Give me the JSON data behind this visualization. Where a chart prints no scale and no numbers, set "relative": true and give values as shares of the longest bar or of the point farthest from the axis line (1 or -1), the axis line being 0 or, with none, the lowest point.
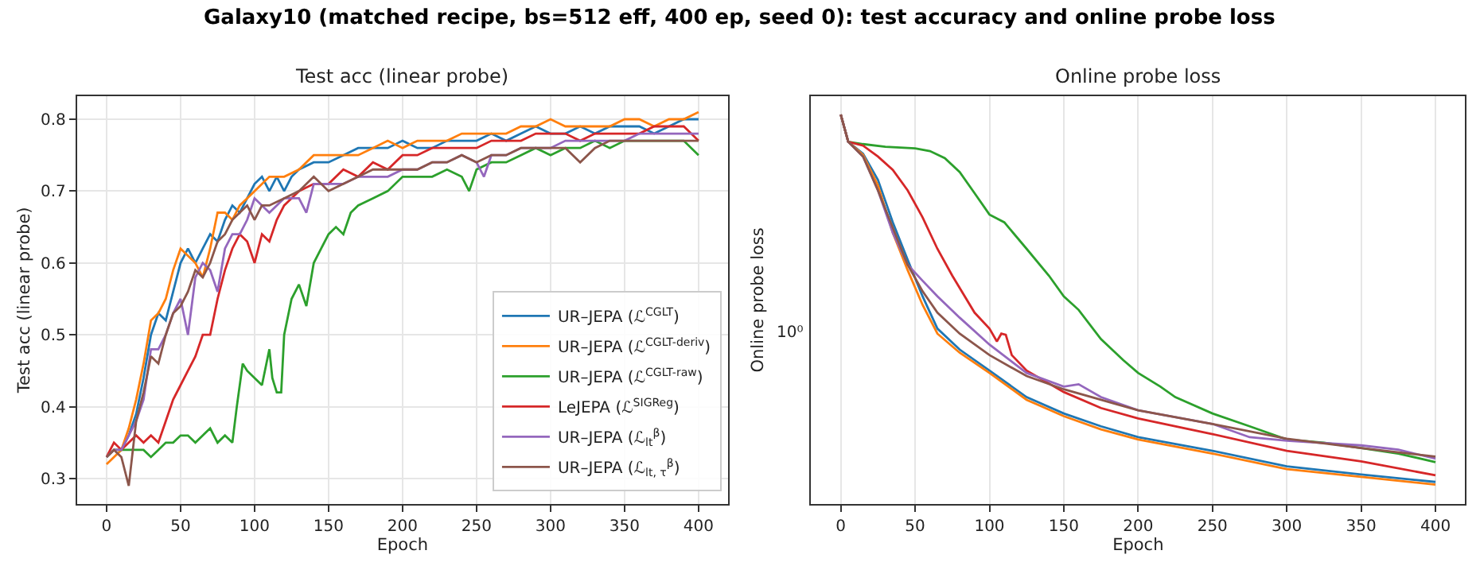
{
  "chart_data": [
    {
      "type": "line",
      "title": "Galaxy10 (matched recipe, bs=512 eff, 400 ep, seed 0): test accuracy and online probe loss",
      "subtitle": "Test acc (linear probe)",
      "xlabel": "Epoch",
      "ylabel": "Test acc (linear probe)",
      "xlim": [
        -20,
        420
      ],
      "xticks": [
        0,
        50,
        100,
        150,
        200,
        250,
        300,
        350,
        400
      ],
      "ylim": [
        0.265,
        0.832
      ],
      "yticks": [
        0.3,
        0.4,
        0.5,
        0.6,
        0.7,
        0.8
      ],
      "grid": true,
      "legend": "bottom right",
      "series": [
        {
          "name": "UR–JEPA (ℒ$^{CGLT}$)",
          "color": "#1f77b4",
          "x": [
            10,
            15,
            20,
            25,
            30,
            35,
            40,
            45,
            50,
            55,
            60,
            65,
            70,
            75,
            80,
            85,
            90,
            95,
            100,
            105,
            110,
            115,
            120,
            125,
            130,
            140,
            150,
            160,
            170,
            180,
            190,
            200,
            210,
            220,
            230,
            240,
            250,
            260,
            270,
            280,
            290,
            300,
            310,
            320,
            330,
            340,
            350,
            360,
            370,
            380,
            390,
            400
          ],
          "values": [
            0.34,
            0.36,
            0.39,
            0.44,
            0.5,
            0.53,
            0.52,
            0.56,
            0.6,
            0.62,
            0.6,
            0.62,
            0.64,
            0.63,
            0.66,
            0.68,
            0.67,
            0.69,
            0.71,
            0.72,
            0.7,
            0.72,
            0.7,
            0.72,
            0.73,
            0.74,
            0.74,
            0.75,
            0.76,
            0.76,
            0.76,
            0.77,
            0.76,
            0.76,
            0.77,
            0.77,
            0.77,
            0.78,
            0.77,
            0.78,
            0.79,
            0.78,
            0.78,
            0.79,
            0.78,
            0.79,
            0.79,
            0.79,
            0.78,
            0.79,
            0.8,
            0.8
          ]
        },
        {
          "name": "UR–JEPA (ℒ$^{CGLT-deriv}$)",
          "color": "#ff7f0e",
          "x": [
            0,
            5,
            10,
            15,
            20,
            25,
            30,
            35,
            40,
            45,
            50,
            55,
            60,
            65,
            70,
            75,
            80,
            85,
            90,
            95,
            100,
            110,
            120,
            130,
            140,
            150,
            160,
            170,
            180,
            190,
            200,
            210,
            220,
            230,
            240,
            250,
            260,
            270,
            280,
            290,
            300,
            310,
            320,
            330,
            340,
            350,
            360,
            370,
            380,
            390,
            400
          ],
          "values": [
            0.32,
            0.33,
            0.34,
            0.37,
            0.41,
            0.46,
            0.52,
            0.53,
            0.55,
            0.59,
            0.62,
            0.61,
            0.6,
            0.58,
            0.62,
            0.67,
            0.67,
            0.66,
            0.68,
            0.69,
            0.7,
            0.72,
            0.72,
            0.73,
            0.75,
            0.75,
            0.75,
            0.75,
            0.76,
            0.77,
            0.76,
            0.77,
            0.77,
            0.77,
            0.78,
            0.78,
            0.78,
            0.78,
            0.79,
            0.79,
            0.8,
            0.79,
            0.79,
            0.79,
            0.79,
            0.8,
            0.8,
            0.79,
            0.8,
            0.8,
            0.81
          ]
        },
        {
          "name": "UR–JEPA (ℒ$^{CGLT-raw}$)",
          "color": "#2ca02c",
          "x": [
            0,
            5,
            10,
            15,
            20,
            25,
            30,
            35,
            40,
            45,
            50,
            55,
            60,
            65,
            70,
            75,
            80,
            85,
            88,
            92,
            95,
            100,
            105,
            110,
            112,
            115,
            118,
            120,
            125,
            130,
            135,
            140,
            145,
            150,
            155,
            160,
            165,
            170,
            180,
            190,
            200,
            210,
            220,
            230,
            240,
            245,
            250,
            260,
            270,
            280,
            290,
            300,
            310,
            320,
            330,
            340,
            350,
            360,
            370,
            380,
            390,
            400
          ],
          "values": [
            0.33,
            0.34,
            0.34,
            0.34,
            0.34,
            0.34,
            0.33,
            0.34,
            0.35,
            0.35,
            0.36,
            0.36,
            0.35,
            0.36,
            0.37,
            0.35,
            0.36,
            0.35,
            0.4,
            0.46,
            0.45,
            0.44,
            0.43,
            0.48,
            0.44,
            0.42,
            0.42,
            0.5,
            0.55,
            0.57,
            0.54,
            0.6,
            0.62,
            0.64,
            0.65,
            0.64,
            0.67,
            0.68,
            0.69,
            0.7,
            0.72,
            0.72,
            0.72,
            0.73,
            0.72,
            0.7,
            0.73,
            0.74,
            0.74,
            0.75,
            0.76,
            0.75,
            0.76,
            0.76,
            0.77,
            0.76,
            0.77,
            0.77,
            0.77,
            0.77,
            0.77,
            0.75
          ]
        },
        {
          "name": "LeJEPA (ℒ$^{SIGReg}$)",
          "color": "#d62728",
          "x": [
            0,
            5,
            10,
            15,
            20,
            25,
            30,
            35,
            40,
            45,
            50,
            55,
            60,
            65,
            70,
            75,
            80,
            85,
            90,
            95,
            100,
            105,
            110,
            115,
            120,
            130,
            140,
            150,
            160,
            170,
            180,
            190,
            200,
            210,
            220,
            230,
            240,
            250,
            260,
            270,
            280,
            290,
            300,
            310,
            320,
            330,
            340,
            350,
            360,
            370,
            380,
            390,
            400
          ],
          "values": [
            0.33,
            0.35,
            0.34,
            0.35,
            0.36,
            0.35,
            0.36,
            0.35,
            0.38,
            0.41,
            0.43,
            0.45,
            0.47,
            0.5,
            0.5,
            0.55,
            0.59,
            0.62,
            0.64,
            0.63,
            0.6,
            0.64,
            0.63,
            0.66,
            0.68,
            0.7,
            0.71,
            0.71,
            0.73,
            0.72,
            0.74,
            0.73,
            0.75,
            0.75,
            0.76,
            0.76,
            0.76,
            0.76,
            0.77,
            0.77,
            0.77,
            0.78,
            0.78,
            0.78,
            0.77,
            0.78,
            0.78,
            0.78,
            0.78,
            0.79,
            0.79,
            0.79,
            0.77
          ]
        },
        {
          "name": "UR–JEPA (ℒ$_{lt}$$^{β}$)",
          "color": "#9467bd",
          "x": [
            0,
            5,
            10,
            15,
            20,
            25,
            30,
            35,
            40,
            45,
            50,
            55,
            60,
            65,
            70,
            75,
            80,
            85,
            90,
            95,
            100,
            105,
            110,
            120,
            130,
            135,
            140,
            150,
            160,
            170,
            180,
            190,
            200,
            210,
            220,
            230,
            240,
            250,
            255,
            260,
            270,
            280,
            290,
            300,
            310,
            320,
            330,
            340,
            350,
            360,
            370,
            380,
            390,
            400
          ],
          "values": [
            0.33,
            0.34,
            0.34,
            0.36,
            0.38,
            0.41,
            0.48,
            0.48,
            0.5,
            0.53,
            0.55,
            0.5,
            0.58,
            0.6,
            0.59,
            0.56,
            0.62,
            0.64,
            0.64,
            0.66,
            0.69,
            0.68,
            0.67,
            0.69,
            0.69,
            0.67,
            0.71,
            0.71,
            0.71,
            0.72,
            0.72,
            0.72,
            0.73,
            0.73,
            0.74,
            0.74,
            0.75,
            0.74,
            0.72,
            0.75,
            0.75,
            0.76,
            0.76,
            0.76,
            0.77,
            0.77,
            0.77,
            0.77,
            0.77,
            0.78,
            0.78,
            0.78,
            0.78,
            0.78
          ]
        },
        {
          "name": "UR–JEPA (ℒ$_{lt, τ}$$^{β}$)",
          "color": "#8c564b",
          "x": [
            0,
            5,
            10,
            15,
            20,
            25,
            30,
            35,
            40,
            45,
            50,
            55,
            60,
            65,
            70,
            75,
            80,
            85,
            90,
            95,
            100,
            105,
            110,
            120,
            130,
            140,
            150,
            160,
            170,
            180,
            190,
            200,
            210,
            220,
            230,
            240,
            250,
            260,
            270,
            280,
            290,
            300,
            310,
            320,
            330,
            340,
            350,
            360,
            370,
            380,
            390,
            400
          ],
          "values": [
            0.33,
            0.34,
            0.33,
            0.29,
            0.38,
            0.42,
            0.47,
            0.46,
            0.5,
            0.53,
            0.54,
            0.56,
            0.59,
            0.58,
            0.6,
            0.63,
            0.64,
            0.66,
            0.67,
            0.68,
            0.66,
            0.68,
            0.68,
            0.69,
            0.7,
            0.72,
            0.7,
            0.71,
            0.72,
            0.73,
            0.73,
            0.73,
            0.73,
            0.74,
            0.74,
            0.75,
            0.74,
            0.75,
            0.75,
            0.76,
            0.76,
            0.76,
            0.76,
            0.74,
            0.76,
            0.77,
            0.77,
            0.77,
            0.77,
            0.77,
            0.77,
            0.77
          ]
        }
      ]
    },
    {
      "type": "line",
      "title": "Online probe loss",
      "xlabel": "Epoch",
      "ylabel": "Online probe loss",
      "relative": true,
      "xlim": [
        -20,
        420
      ],
      "xticks": [
        0,
        50,
        100,
        150,
        200,
        250,
        300,
        350,
        400
      ],
      "grid": "x",
      "annotations": [
        "10⁰"
      ],
      "series": [
        {
          "color": "#1f77b4",
          "x": [
            0,
            5,
            15,
            25,
            35,
            45,
            55,
            65,
            80,
            100,
            125,
            150,
            175,
            200,
            250,
            300,
            350,
            400
          ],
          "values": [
            1,
            0.93,
            0.899,
            0.832,
            0.723,
            0.627,
            0.533,
            0.45,
            0.396,
            0.342,
            0.274,
            0.232,
            0.199,
            0.171,
            0.136,
            0.096,
            0.075,
            0.056
          ]
        },
        {
          "color": "#ff7f0e",
          "x": [
            0,
            5,
            15,
            25,
            35,
            45,
            55,
            65,
            80,
            100,
            125,
            150,
            175,
            200,
            250,
            300,
            350,
            400
          ],
          "values": [
            1,
            0.93,
            0.896,
            0.818,
            0.696,
            0.6,
            0.511,
            0.437,
            0.388,
            0.336,
            0.267,
            0.225,
            0.191,
            0.165,
            0.129,
            0.089,
            0.069,
            0.049
          ]
        },
        {
          "color": "#2ca02c",
          "x": [
            0,
            5,
            15,
            30,
            50,
            60,
            70,
            80,
            90,
            100,
            110,
            125,
            140,
            150,
            160,
            175,
            190,
            200,
            215,
            225,
            250,
            275,
            300,
            325,
            350,
            375,
            400
          ],
          "values": [
            1,
            0.93,
            0.924,
            0.917,
            0.913,
            0.906,
            0.888,
            0.852,
            0.798,
            0.743,
            0.723,
            0.655,
            0.586,
            0.533,
            0.498,
            0.423,
            0.369,
            0.336,
            0.301,
            0.274,
            0.232,
            0.199,
            0.165,
            0.157,
            0.143,
            0.129,
            0.107
          ]
        },
        {
          "color": "#d62728",
          "x": [
            0,
            5,
            15,
            25,
            35,
            45,
            55,
            65,
            75,
            90,
            100,
            105,
            108,
            111,
            115,
            125,
            150,
            175,
            200,
            250,
            300,
            350,
            400
          ],
          "values": [
            1,
            0.93,
            0.92,
            0.892,
            0.858,
            0.805,
            0.736,
            0.655,
            0.586,
            0.491,
            0.45,
            0.417,
            0.437,
            0.434,
            0.382,
            0.342,
            0.287,
            0.246,
            0.219,
            0.179,
            0.136,
            0.109,
            0.073
          ]
        },
        {
          "color": "#9467bd",
          "x": [
            0,
            5,
            15,
            25,
            35,
            45,
            55,
            65,
            80,
            100,
            125,
            150,
            160,
            175,
            200,
            250,
            275,
            300,
            350,
            375,
            400
          ],
          "values": [
            1,
            0.93,
            0.892,
            0.805,
            0.696,
            0.614,
            0.573,
            0.533,
            0.478,
            0.409,
            0.336,
            0.301,
            0.307,
            0.274,
            0.24,
            0.205,
            0.171,
            0.162,
            0.15,
            0.139,
            0.116
          ]
        },
        {
          "color": "#8c564b",
          "x": [
            0,
            5,
            15,
            25,
            35,
            45,
            55,
            65,
            80,
            100,
            125,
            150,
            175,
            200,
            250,
            300,
            350,
            400
          ],
          "values": [
            1,
            0.93,
            0.892,
            0.805,
            0.709,
            0.614,
            0.546,
            0.491,
            0.437,
            0.382,
            0.328,
            0.294,
            0.267,
            0.24,
            0.205,
            0.167,
            0.143,
            0.121
          ]
        }
      ]
    }
  ]
}
